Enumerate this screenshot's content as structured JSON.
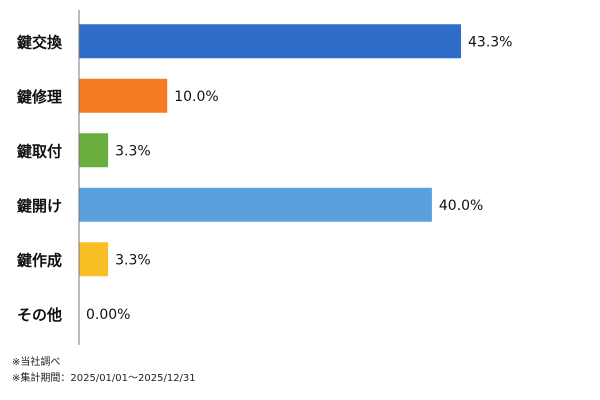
{
  "chart_data": {
    "type": "bar",
    "orientation": "horizontal",
    "categories": [
      "鍵交換",
      "鍵修理",
      "鍵取付",
      "鍵開け",
      "鍵作成",
      "その他"
    ],
    "values": [
      43.3,
      10.0,
      3.3,
      40.0,
      3.3,
      0.0
    ],
    "value_labels": [
      "43.3%",
      "10.0%",
      "3.3%",
      "40.0%",
      "3.3%",
      "0.00%"
    ],
    "colors": [
      "#2e6ec8",
      "#f47b20",
      "#6aaf3e",
      "#5aa0dc",
      "#f8bf24",
      "#cccccc"
    ],
    "xlim": [
      0,
      50
    ],
    "grid": false,
    "legend": "none"
  },
  "notes": {
    "line1": "※当社調べ",
    "line2": "※集計期間：2025/01/01～2025/12/31"
  }
}
